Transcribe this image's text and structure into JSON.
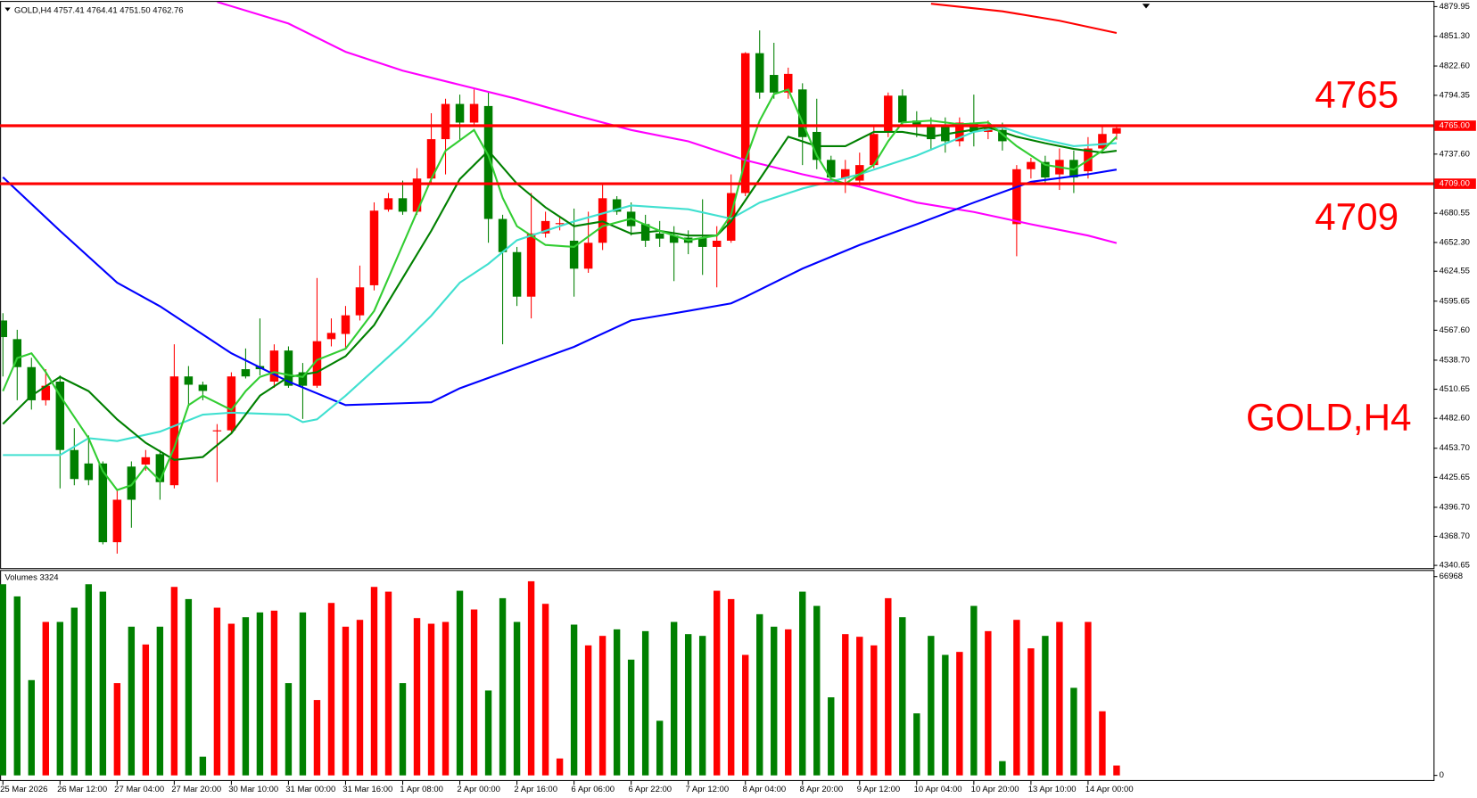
{
  "chart_data": {
    "type": "candlestick",
    "symbol": "GOLD,H4",
    "last_bar_labels": [
      "4757.41",
      "4764.41",
      "4751.50",
      "4762.76"
    ],
    "categories": [
      "25 Mar 2026",
      null,
      null,
      null,
      "26 Mar 12:00",
      null,
      null,
      null,
      "27 Mar 04:00",
      null,
      null,
      null,
      "27 Mar 20:00",
      null,
      null,
      null,
      "30 Mar 10:00",
      null,
      null,
      null,
      "31 Mar 00:00",
      null,
      null,
      null,
      "31 Mar 16:00",
      null,
      null,
      null,
      "1 Apr 08:00",
      null,
      null,
      null,
      "2 Apr 00:00",
      null,
      null,
      null,
      "2 Apr 16:00",
      null,
      null,
      null,
      "6 Apr 06:00",
      null,
      null,
      null,
      "6 Apr 22:00",
      null,
      null,
      null,
      "7 Apr 12:00",
      null,
      null,
      null,
      "8 Apr 04:00",
      null,
      null,
      null,
      "8 Apr 20:00",
      null,
      null,
      null,
      "9 Apr 12:00",
      null,
      null,
      null,
      "10 Apr 04:00",
      null,
      null,
      null,
      "10 Apr 20:00",
      null,
      null,
      null,
      "13 Apr 10:00",
      null,
      null,
      null,
      "14 Apr 00:00",
      null,
      null
    ],
    "ohlc": [
      [
        4577,
        4584,
        4523,
        4561
      ],
      [
        4559,
        4568,
        4500,
        4532
      ],
      [
        4532,
        4541,
        4491,
        4500
      ],
      [
        4500,
        4530,
        4495,
        4514
      ],
      [
        4518,
        4524,
        4415,
        4452
      ],
      [
        4452,
        4473,
        4418,
        4424
      ],
      [
        4439,
        4466,
        4418,
        4423
      ],
      [
        4439,
        4441,
        4361,
        4363
      ],
      [
        4363,
        4413,
        4352,
        4404
      ],
      [
        4436,
        4441,
        4377,
        4404
      ],
      [
        4438,
        4452,
        4432,
        4445
      ],
      [
        4448,
        4452,
        4404,
        4421
      ],
      [
        4418,
        4554,
        4415,
        4523
      ],
      [
        4523,
        4533,
        4495,
        4515
      ],
      [
        4515,
        4518,
        4500,
        4509
      ],
      [
        4470,
        4477,
        4421,
        4471
      ],
      [
        4471,
        4527,
        4468,
        4523
      ],
      [
        4530,
        4550,
        4521,
        4523
      ],
      [
        4533,
        4579,
        4524,
        4530
      ],
      [
        4518,
        4554,
        4512,
        4548
      ],
      [
        4548,
        4552,
        4512,
        4514
      ],
      [
        4527,
        4536,
        4482,
        4514
      ],
      [
        4514,
        4618,
        4512,
        4557
      ],
      [
        4559,
        4579,
        4552,
        4565
      ],
      [
        4564,
        4591,
        4550,
        4582
      ],
      [
        4582,
        4630,
        4577,
        4609
      ],
      [
        4611,
        4691,
        4606,
        4683
      ],
      [
        4684,
        4700,
        4682,
        4695
      ],
      [
        4695,
        4712,
        4679,
        4682
      ],
      [
        4682,
        4724,
        4679,
        4714
      ],
      [
        4714,
        4777,
        4709,
        4752
      ],
      [
        4752,
        4791,
        4718,
        4786
      ],
      [
        4786,
        4795,
        4750,
        4768
      ],
      [
        4768,
        4800,
        4764,
        4786
      ],
      [
        4784,
        4798,
        4652,
        4675
      ],
      [
        4675,
        4679,
        4554,
        4643
      ],
      [
        4643,
        4648,
        4591,
        4600
      ],
      [
        4600,
        4700,
        4579,
        4661
      ],
      [
        4661,
        4682,
        4657,
        4673
      ],
      [
        4670,
        4677,
        4664,
        4671
      ],
      [
        4654,
        4685,
        4600,
        4627
      ],
      [
        4627,
        4682,
        4623,
        4652
      ],
      [
        4652,
        4709,
        4645,
        4695
      ],
      [
        4694,
        4697,
        4679,
        4682
      ],
      [
        4682,
        4691,
        4659,
        4668
      ],
      [
        4670,
        4679,
        4648,
        4654
      ],
      [
        4661,
        4673,
        4648,
        4656
      ],
      [
        4659,
        4668,
        4615,
        4652
      ],
      [
        4657,
        4664,
        4641,
        4652
      ],
      [
        4657,
        4694,
        4621,
        4648
      ],
      [
        4648,
        4668,
        4609,
        4654
      ],
      [
        4654,
        4718,
        4652,
        4700
      ],
      [
        4700,
        4836,
        4697,
        4835
      ],
      [
        4835,
        4857,
        4791,
        4797
      ],
      [
        4814,
        4845,
        4791,
        4797
      ],
      [
        4797,
        4821,
        4791,
        4815
      ],
      [
        4800,
        4806,
        4727,
        4754
      ],
      [
        4759,
        4791,
        4723,
        4732
      ],
      [
        4732,
        4736,
        4709,
        4715
      ],
      [
        4714,
        4732,
        4700,
        4723
      ],
      [
        4712,
        4739,
        4706,
        4727
      ],
      [
        4727,
        4764,
        4724,
        4757
      ],
      [
        4759,
        4797,
        4754,
        4794
      ],
      [
        4794,
        4800,
        4764,
        4768
      ],
      [
        4770,
        4779,
        4754,
        4764
      ],
      [
        4766,
        4773,
        4741,
        4752
      ],
      [
        4766,
        4773,
        4739,
        4750
      ],
      [
        4750,
        4773,
        4745,
        4768
      ],
      [
        4768,
        4795,
        4745,
        4759
      ],
      [
        4759,
        4770,
        4752,
        4764
      ],
      [
        4761,
        4768,
        4741,
        4750
      ],
      [
        4670,
        4727,
        4639,
        4723
      ],
      [
        4723,
        4734,
        4714,
        4730
      ],
      [
        4730,
        4736,
        4709,
        4715
      ],
      [
        4718,
        4743,
        4703,
        4732
      ],
      [
        4732,
        4741,
        4700,
        4715
      ],
      [
        4721,
        4754,
        4714,
        4743
      ],
      [
        4743,
        4764,
        4739,
        4757
      ],
      [
        4757.41,
        4764.41,
        4751.5,
        4762.76
      ]
    ],
    "up_color": "#ff0000",
    "down_color": "#008000",
    "ylim": [
      4338,
      4884.5
    ],
    "yticks": [
      4879.95,
      {
        "value": 4851.3,
        "label": "4851.30"
      },
      {
        "value": 4822.6,
        "label": "4822.60"
      },
      4794.35,
      {
        "value": 4737.6,
        "label": "4737.60"
      },
      4680.55,
      {
        "value": 4652.3,
        "label": "4652.30"
      },
      4624.55,
      4595.65,
      {
        "value": 4567.6,
        "label": "4567.60"
      },
      {
        "value": 4538.7,
        "label": "4538.70"
      },
      4510.65,
      {
        "value": 4482.6,
        "label": "4482.60"
      },
      {
        "value": 4453.7,
        "label": "4453.70"
      },
      4425.65,
      {
        "value": 4396.7,
        "label": "4396.70"
      },
      {
        "value": 4368.7,
        "label": "4368.70"
      },
      4340.65
    ],
    "hlines": [
      {
        "value": 4765,
        "label": "4765.00",
        "color": "#ff0000"
      },
      {
        "value": 4709,
        "label": "4709.00",
        "color": "#ff0000"
      }
    ],
    "series": [
      {
        "color": "#ff0000",
        "x": [
          65,
          70,
          74,
          78
        ],
        "values": [
          4882.7,
          4875.4,
          4866.3,
          4854.5
        ]
      },
      {
        "color": "#ff00ff",
        "x": [
          15,
          20,
          24,
          28,
          32,
          36,
          40,
          44,
          48,
          52,
          56,
          60,
          64,
          68,
          72,
          76,
          78
        ],
        "values": [
          4884.5,
          4863.6,
          4836.3,
          4818.1,
          4804.5,
          4790.8,
          4775.4,
          4760.8,
          4749.9,
          4731.7,
          4718.1,
          4706.2,
          4690.8,
          4681.7,
          4669.9,
          4659.0,
          4651.7
        ]
      },
      {
        "color": "#0000ff",
        "x": [
          0,
          4,
          8,
          11,
          16,
          20,
          24,
          28,
          30,
          32,
          36,
          40,
          44,
          48,
          51,
          52,
          56,
          60,
          64,
          68,
          72,
          76,
          78
        ],
        "values": [
          4715.3,
          4663.5,
          4613.5,
          4590.7,
          4545.3,
          4518.0,
          4495.3,
          4497.1,
          4498.0,
          4511.6,
          4531.6,
          4551.6,
          4577.1,
          4586.2,
          4593.5,
          4599.8,
          4627.1,
          4649.9,
          4669.9,
          4690.8,
          4710.8,
          4718.1,
          4722.6
        ]
      },
      {
        "color": "#40e0d0",
        "x": [
          0,
          4,
          6,
          8,
          11,
          14,
          16,
          20,
          21,
          22,
          24,
          28,
          30,
          32,
          34,
          36,
          40,
          44,
          48,
          51,
          53,
          56,
          60,
          64,
          68,
          70,
          72,
          75,
          78
        ],
        "values": [
          4447.1,
          4447.1,
          4463.4,
          4460.7,
          4469.8,
          4486.1,
          4488.0,
          4486.1,
          4478.9,
          4481.6,
          4504.4,
          4554.4,
          4581.6,
          4613.5,
          4631.7,
          4654.4,
          4672.6,
          4688.0,
          4684.4,
          4675.3,
          4690.8,
          4704.4,
          4718.1,
          4736.2,
          4759.0,
          4763.5,
          4754.4,
          4745.3,
          4748.1
        ]
      },
      {
        "color": "#008000",
        "x": [
          0,
          2,
          4,
          6,
          8,
          10,
          12,
          14,
          16,
          18,
          20,
          22,
          24,
          26,
          28,
          30,
          32,
          34,
          36,
          38,
          40,
          42,
          44,
          46,
          48,
          50,
          51,
          53,
          55,
          57,
          59,
          61,
          63,
          65,
          67,
          69,
          71,
          73,
          75,
          77,
          78
        ],
        "values": [
          4477.1,
          4504.4,
          4522.5,
          4508.9,
          4481.6,
          4458.9,
          4442.5,
          4445.2,
          4468.0,
          4504.4,
          4522.5,
          4527.1,
          4542.5,
          4572.6,
          4618.0,
          4663.5,
          4713.5,
          4740.8,
          4709.0,
          4686.2,
          4668.0,
          4672.6,
          4660.8,
          4663.5,
          4659.0,
          4659.0,
          4672.6,
          4713.5,
          4754.4,
          4745.3,
          4745.3,
          4759.0,
          4759.0,
          4754.4,
          4759.0,
          4763.5,
          4754.4,
          4748.1,
          4742.6,
          4739.0,
          4740.8
        ]
      },
      {
        "color": "#32cd32",
        "x": [
          0,
          1,
          2,
          3,
          4,
          6,
          7,
          8,
          9,
          10,
          11,
          12,
          13,
          14,
          16,
          17,
          18,
          19,
          20,
          21,
          22,
          24,
          26,
          28,
          30,
          31,
          33,
          34,
          35,
          36,
          38,
          40,
          42,
          44,
          46,
          48,
          50,
          51,
          52,
          53,
          54,
          55,
          56,
          57,
          58,
          59,
          61,
          62,
          63,
          65,
          67,
          69,
          71,
          73,
          75,
          77,
          78
        ],
        "values": [
          4508.9,
          4540.7,
          4545.3,
          4527.1,
          4504.4,
          4463.4,
          4431.6,
          4413.4,
          4418.0,
          4436.2,
          4422.5,
          4454.3,
          4495.3,
          4504.4,
          4490.7,
          4508.9,
          4522.5,
          4527.1,
          4524.4,
          4522.5,
          4538.9,
          4549.8,
          4586.2,
          4649.9,
          4713.5,
          4740.8,
          4760.8,
          4736.2,
          4695.3,
          4668.0,
          4649.9,
          4648.0,
          4668.0,
          4675.3,
          4663.5,
          4654.4,
          4659.0,
          4679.0,
          4731.7,
          4769.9,
          4795.4,
          4799.9,
          4768.1,
          4736.2,
          4713.5,
          4709.0,
          4727.2,
          4749.9,
          4768.1,
          4769.9,
          4766.3,
          4768.1,
          4745.3,
          4727.2,
          4722.6,
          4740.8,
          4754.4
        ]
      }
    ],
    "volume_title": "Volumes",
    "volumes": [
      64400,
      60300,
      32100,
      51700,
      51700,
      56500,
      64400,
      61900,
      31100,
      50100,
      44100,
      50100,
      63500,
      59400,
      6300,
      56500,
      51100,
      53300,
      54900,
      55500,
      31100,
      54900,
      25400,
      58100,
      50100,
      52400,
      63500,
      61900,
      31100,
      53000,
      51100,
      51700,
      62200,
      55900,
      28600,
      59700,
      51700,
      65400,
      57800,
      5700,
      50800,
      43800,
      47000,
      49200,
      39000,
      48600,
      18400,
      51700,
      47600,
      47000,
      62200,
      59400,
      40600,
      54300,
      50100,
      49200,
      61900,
      57100,
      26300,
      47600,
      46700,
      43800,
      59700,
      53300,
      20900,
      47000,
      40600,
      41600,
      57100,
      48600,
      4800,
      52400,
      42800,
      47000,
      51700,
      29500,
      51700,
      21600,
      3324
    ],
    "volume_ylim": [
      0,
      68560
    ],
    "volume_yticks": [
      66968,
      0
    ]
  }
}
